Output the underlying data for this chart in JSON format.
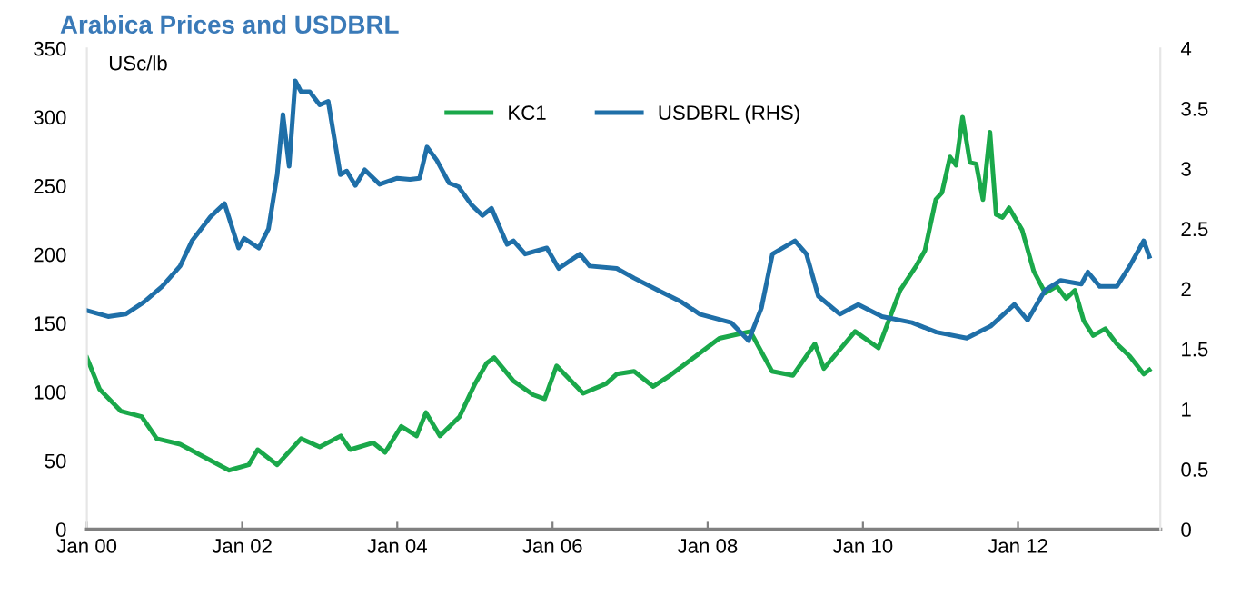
{
  "chart_data": {
    "type": "line",
    "title": "Arabica Prices and USDBRL",
    "ylabel": "USc/lb",
    "legend": "top",
    "grid": false,
    "marker": "none",
    "line_style": "solid",
    "xlim": [
      "2000-01-01",
      "2013-11-01"
    ],
    "xticks": [
      {
        "value": "2000-01-01",
        "label": "Jan 00"
      },
      {
        "value": "2002-01-01",
        "label": "Jan 02"
      },
      {
        "value": "2004-01-01",
        "label": "Jan 04"
      },
      {
        "value": "2006-01-01",
        "label": "Jan 06"
      },
      {
        "value": "2008-01-01",
        "label": "Jan 08"
      },
      {
        "value": "2010-01-01",
        "label": "Jan 10"
      },
      {
        "value": "2012-01-01",
        "label": "Jan 12"
      }
    ],
    "ylim": [
      0,
      350
    ],
    "yticks": [
      0,
      50,
      100,
      150,
      200,
      250,
      300,
      350
    ],
    "y2lim": [
      0,
      4
    ],
    "y2ticks": [
      0,
      0.5,
      1,
      1.5,
      2,
      2.5,
      3,
      3.5,
      4
    ],
    "series": [
      {
        "name": "KC1",
        "color": "#1aa84a",
        "x": [
          "2000-01-01",
          "2000-03-01",
          "2000-06-10",
          "2000-09-15",
          "2000-11-25",
          "2001-03-15",
          "2001-07-01",
          "2001-11-01",
          "2002-02-01",
          "2002-03-15",
          "2002-06-15",
          "2002-10-05",
          "2003-01-01",
          "2003-04-10",
          "2003-05-25",
          "2003-09-10",
          "2003-11-05",
          "2004-01-20",
          "2004-04-01",
          "2004-05-15",
          "2004-07-20",
          "2004-10-20",
          "2005-01-01",
          "2005-02-25",
          "2005-04-01",
          "2005-07-01",
          "2005-10-01",
          "2005-11-25",
          "2006-01-20",
          "2006-05-25",
          "2006-09-10",
          "2006-10-30",
          "2007-01-20",
          "2007-04-20",
          "2007-07-08",
          "2007-11-05",
          "2008-02-25",
          "2008-07-20",
          "2008-10-30",
          "2009-02-05",
          "2009-05-20",
          "2009-07-01",
          "2009-11-25",
          "2010-03-15",
          "2010-06-25",
          "2010-09-10",
          "2010-10-20",
          "2010-12-10",
          "2011-01-08",
          "2011-02-15",
          "2011-03-15",
          "2011-04-15",
          "2011-05-20",
          "2011-06-18",
          "2011-07-20",
          "2011-08-22",
          "2011-09-20",
          "2011-10-20",
          "2011-11-20",
          "2012-01-20",
          "2012-03-15",
          "2012-05-08",
          "2012-07-01",
          "2012-08-15",
          "2012-09-25",
          "2012-11-05",
          "2012-12-20",
          "2013-02-15",
          "2013-04-10",
          "2013-06-10",
          "2013-08-15",
          "2013-09-10"
        ],
        "values": [
          125,
          102,
          86,
          82,
          66,
          62,
          53,
          43,
          47,
          58,
          47,
          66,
          60,
          68,
          58,
          63,
          56,
          75,
          68,
          85,
          68,
          82,
          106,
          121,
          125,
          108,
          98,
          95,
          119,
          99,
          106,
          113,
          115,
          104,
          112,
          126,
          139,
          144,
          115,
          112,
          135,
          117,
          144,
          132,
          174,
          192,
          203,
          240,
          245,
          271,
          265,
          300,
          267,
          266,
          240,
          289,
          229,
          227,
          234,
          218,
          188,
          172,
          177,
          168,
          174,
          152,
          141,
          146,
          135,
          126,
          113,
          116
        ]
      },
      {
        "name": "USDBRL (RHS)",
        "color": "#1f6fa8",
        "axis": "y2",
        "x": [
          "2000-01-01",
          "2000-04-10",
          "2000-07-01",
          "2000-09-25",
          "2000-12-20",
          "2001-03-15",
          "2001-05-10",
          "2001-08-05",
          "2001-10-10",
          "2001-12-15",
          "2002-01-10",
          "2002-03-20",
          "2002-05-05",
          "2002-06-15",
          "2002-07-12",
          "2002-08-10",
          "2002-09-08",
          "2002-10-05",
          "2002-11-15",
          "2003-01-01",
          "2003-02-10",
          "2003-04-08",
          "2003-05-08",
          "2003-06-18",
          "2003-08-01",
          "2003-10-10",
          "2004-01-01",
          "2004-03-01",
          "2004-04-15",
          "2004-05-20",
          "2004-07-05",
          "2004-09-01",
          "2004-10-15",
          "2004-12-15",
          "2005-02-05",
          "2005-03-20",
          "2005-06-01",
          "2005-07-01",
          "2005-08-25",
          "2005-12-05",
          "2006-01-30",
          "2006-05-10",
          "2006-06-25",
          "2006-10-30",
          "2007-01-20",
          "2007-05-10",
          "2007-09-01",
          "2007-11-25",
          "2008-04-20",
          "2008-07-12",
          "2008-09-10",
          "2008-11-01",
          "2009-02-15",
          "2009-04-10",
          "2009-06-05",
          "2009-09-15",
          "2009-12-10",
          "2010-04-01",
          "2010-08-20",
          "2010-12-12",
          "2011-05-05",
          "2011-08-25",
          "2011-12-15",
          "2012-02-15",
          "2012-05-08",
          "2012-07-20",
          "2012-10-25",
          "2012-11-25",
          "2013-01-20",
          "2013-04-10",
          "2013-06-10",
          "2013-08-15",
          "2013-09-10"
        ],
        "values": [
          1.82,
          1.77,
          1.79,
          1.89,
          2.02,
          2.19,
          2.4,
          2.6,
          2.71,
          2.34,
          2.42,
          2.34,
          2.5,
          2.95,
          3.45,
          3.02,
          3.73,
          3.64,
          3.64,
          3.53,
          3.56,
          2.95,
          2.98,
          2.86,
          2.99,
          2.87,
          2.92,
          2.91,
          2.92,
          3.18,
          3.07,
          2.88,
          2.85,
          2.7,
          2.61,
          2.67,
          2.37,
          2.4,
          2.29,
          2.34,
          2.17,
          2.29,
          2.19,
          2.17,
          2.09,
          1.99,
          1.89,
          1.79,
          1.72,
          1.57,
          1.84,
          2.29,
          2.4,
          2.29,
          1.94,
          1.79,
          1.87,
          1.77,
          1.72,
          1.64,
          1.59,
          1.69,
          1.87,
          1.74,
          1.99,
          2.07,
          2.04,
          2.14,
          2.02,
          2.02,
          2.19,
          2.4,
          2.27
        ]
      }
    ]
  }
}
